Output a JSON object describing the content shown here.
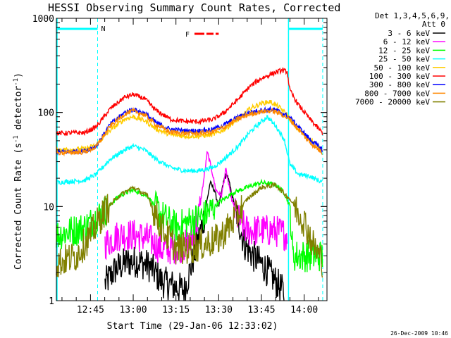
{
  "chart_data": {
    "type": "line",
    "title": "HESSI Observing Summary Count Rates, Corrected",
    "xlabel": "Start Time (29-Jan-06 12:33:02)",
    "ylabel_parts": [
      "Corrected Count Rate (s",
      "-1",
      " detector",
      "-1",
      ")"
    ],
    "x_ticks": [
      "12:45",
      "13:00",
      "13:15",
      "13:30",
      "13:45",
      "14:00"
    ],
    "y_ticks": [
      "1",
      "10",
      "100",
      "1000"
    ],
    "y_scale": "log",
    "ylim": [
      1,
      1000
    ],
    "xlim": [
      "12:33:02",
      "14:08"
    ],
    "grid": false,
    "legend_header": [
      "Det 1,3,4,5,6,9,",
      "Att 0"
    ],
    "legend_position": "right",
    "annotations": {
      "night_marker": "N",
      "flare_marker": "F"
    },
    "night_intervals": [
      [
        "12:33:02",
        "12:47:30"
      ],
      [
        "13:54:30",
        "14:06:30"
      ]
    ],
    "flare_interval": [
      "13:21:30",
      "13:30:00"
    ],
    "timestamp": "26-Dec-2009 10:46",
    "series": [
      {
        "name": "3 - 6 keV",
        "color": "#000000",
        "points": [
          [
            "12:33",
            0
          ],
          [
            "12:47",
            0
          ],
          [
            "12:50",
            1.5
          ],
          [
            "12:54",
            2.2
          ],
          [
            "12:58",
            2.6
          ],
          [
            "13:02",
            2.6
          ],
          [
            "13:06",
            2.3
          ],
          [
            "13:10",
            1.6
          ],
          [
            "13:18",
            1.3
          ],
          [
            "13:22",
            3.5
          ],
          [
            "13:25",
            8
          ],
          [
            "13:27",
            18
          ],
          [
            "13:28.5",
            15
          ],
          [
            "13:30",
            10
          ],
          [
            "13:32",
            20
          ],
          [
            "13:33",
            22
          ],
          [
            "13:35",
            12
          ],
          [
            "13:37",
            7
          ],
          [
            "13:39",
            4
          ],
          [
            "13:42",
            3
          ],
          [
            "13:46",
            2.3
          ],
          [
            "13:50",
            1.6
          ],
          [
            "13:53",
            1.2
          ],
          [
            "13:54.5",
            0
          ]
        ]
      },
      {
        "name": "6 - 12 keV",
        "color": "#ff00ff",
        "points": [
          [
            "12:33",
            0
          ],
          [
            "12:47",
            0
          ],
          [
            "12:50",
            4
          ],
          [
            "12:55",
            5
          ],
          [
            "13:00",
            5
          ],
          [
            "13:05",
            4.6
          ],
          [
            "13:10",
            3.5
          ],
          [
            "13:15",
            3.6
          ],
          [
            "13:20",
            4
          ],
          [
            "13:23",
            8
          ],
          [
            "13:25",
            22
          ],
          [
            "13:26",
            38
          ],
          [
            "13:27.5",
            25
          ],
          [
            "13:29",
            15
          ],
          [
            "13:31",
            13
          ],
          [
            "13:32.5",
            25
          ],
          [
            "13:34",
            14
          ],
          [
            "13:36",
            8
          ],
          [
            "13:40",
            5.5
          ],
          [
            "13:45",
            5.6
          ],
          [
            "13:50",
            5.5
          ],
          [
            "13:54",
            5
          ],
          [
            "13:54.5",
            0
          ]
        ]
      },
      {
        "name": "12 - 25 keV",
        "color": "#00ff00",
        "points": [
          [
            "12:33",
            5
          ],
          [
            "12:43",
            6
          ],
          [
            "12:50",
            9
          ],
          [
            "12:55",
            13
          ],
          [
            "13:00",
            15
          ],
          [
            "13:05",
            13
          ],
          [
            "13:10",
            8
          ],
          [
            "13:15",
            6
          ],
          [
            "13:20",
            7
          ],
          [
            "13:25",
            8
          ],
          [
            "13:30",
            11
          ],
          [
            "13:35",
            14
          ],
          [
            "13:40",
            16
          ],
          [
            "13:45",
            18
          ],
          [
            "13:50",
            17
          ],
          [
            "13:53",
            14
          ],
          [
            "13:55",
            10
          ],
          [
            "13:56",
            3
          ],
          [
            "14:05",
            3
          ],
          [
            "14:06.5",
            3
          ]
        ]
      },
      {
        "name": "25 - 50 keV",
        "color": "#00ffff",
        "points": [
          [
            "12:33",
            18
          ],
          [
            "12:43",
            19
          ],
          [
            "12:47",
            22
          ],
          [
            "12:52",
            32
          ],
          [
            "12:57",
            40
          ],
          [
            "13:00",
            44
          ],
          [
            "13:04",
            40
          ],
          [
            "13:08",
            32
          ],
          [
            "13:13",
            26
          ],
          [
            "13:18",
            24
          ],
          [
            "13:23",
            24
          ],
          [
            "13:28",
            26
          ],
          [
            "13:32",
            32
          ],
          [
            "13:37",
            44
          ],
          [
            "13:41",
            62
          ],
          [
            "13:45",
            80
          ],
          [
            "13:47",
            90
          ],
          [
            "13:50",
            72
          ],
          [
            "13:53",
            52
          ],
          [
            "13:55",
            28
          ],
          [
            "13:58",
            22
          ],
          [
            "14:02",
            21
          ],
          [
            "14:06.5",
            18
          ]
        ]
      },
      {
        "name": "50 - 100 keV",
        "color": "#ffcc00",
        "points": [
          [
            "12:33",
            40
          ],
          [
            "12:43",
            41
          ],
          [
            "12:47",
            45
          ],
          [
            "12:52",
            65
          ],
          [
            "12:57",
            85
          ],
          [
            "13:00",
            90
          ],
          [
            "13:04",
            82
          ],
          [
            "13:08",
            67
          ],
          [
            "13:13",
            58
          ],
          [
            "13:18",
            56
          ],
          [
            "13:23",
            56
          ],
          [
            "13:28",
            58
          ],
          [
            "13:32",
            66
          ],
          [
            "13:37",
            85
          ],
          [
            "13:41",
            110
          ],
          [
            "13:45",
            125
          ],
          [
            "13:48",
            130
          ],
          [
            "13:51",
            115
          ],
          [
            "13:54",
            95
          ],
          [
            "13:57",
            70
          ],
          [
            "14:02",
            52
          ],
          [
            "14:06.5",
            40
          ]
        ]
      },
      {
        "name": "100 - 300 keV",
        "color": "#ff0000",
        "points": [
          [
            "12:33",
            60
          ],
          [
            "12:43",
            61
          ],
          [
            "12:47",
            70
          ],
          [
            "12:52",
            110
          ],
          [
            "12:57",
            145
          ],
          [
            "13:00",
            155
          ],
          [
            "13:04",
            140
          ],
          [
            "13:08",
            105
          ],
          [
            "13:13",
            85
          ],
          [
            "13:18",
            80
          ],
          [
            "13:23",
            80
          ],
          [
            "13:28",
            84
          ],
          [
            "13:32",
            100
          ],
          [
            "13:37",
            140
          ],
          [
            "13:41",
            190
          ],
          [
            "13:45",
            230
          ],
          [
            "13:49",
            260
          ],
          [
            "13:52",
            280
          ],
          [
            "13:54",
            272
          ],
          [
            "13:55",
            170
          ],
          [
            "13:58",
            120
          ],
          [
            "14:02",
            85
          ],
          [
            "14:06.5",
            60
          ]
        ]
      },
      {
        "name": "300 - 800 keV",
        "color": "#0000ff",
        "points": [
          [
            "12:33",
            38
          ],
          [
            "12:43",
            39
          ],
          [
            "12:47",
            44
          ],
          [
            "12:52",
            75
          ],
          [
            "12:57",
            100
          ],
          [
            "13:00",
            108
          ],
          [
            "13:04",
            98
          ],
          [
            "13:08",
            78
          ],
          [
            "13:13",
            66
          ],
          [
            "13:18",
            64
          ],
          [
            "13:23",
            64
          ],
          [
            "13:28",
            66
          ],
          [
            "13:32",
            74
          ],
          [
            "13:37",
            90
          ],
          [
            "13:41",
            100
          ],
          [
            "13:45",
            106
          ],
          [
            "13:49",
            108
          ],
          [
            "13:52",
            100
          ],
          [
            "13:55",
            88
          ],
          [
            "13:58",
            70
          ],
          [
            "14:02",
            52
          ],
          [
            "14:06.5",
            40
          ]
        ]
      },
      {
        "name": "800 - 7000 keV",
        "color": "#ff8800",
        "points": [
          [
            "12:33",
            37
          ],
          [
            "12:43",
            38
          ],
          [
            "12:47",
            43
          ],
          [
            "12:52",
            72
          ],
          [
            "12:57",
            96
          ],
          [
            "13:00",
            104
          ],
          [
            "13:04",
            94
          ],
          [
            "13:08",
            74
          ],
          [
            "13:13",
            62
          ],
          [
            "13:18",
            60
          ],
          [
            "13:23",
            60
          ],
          [
            "13:28",
            62
          ],
          [
            "13:32",
            70
          ],
          [
            "13:37",
            86
          ],
          [
            "13:41",
            96
          ],
          [
            "13:45",
            102
          ],
          [
            "13:49",
            104
          ],
          [
            "13:52",
            96
          ],
          [
            "13:55",
            84
          ],
          [
            "13:58",
            66
          ],
          [
            "14:02",
            48
          ],
          [
            "14:06.5",
            37
          ]
        ]
      },
      {
        "name": "7000 - 20000 keV",
        "color": "#808000",
        "points": [
          [
            "12:33",
            2.5
          ],
          [
            "12:40",
            3
          ],
          [
            "12:45",
            5
          ],
          [
            "12:50",
            9
          ],
          [
            "12:55",
            13
          ],
          [
            "13:00",
            16
          ],
          [
            "13:05",
            13
          ],
          [
            "13:10",
            6
          ],
          [
            "13:15",
            3.6
          ],
          [
            "13:20",
            3.6
          ],
          [
            "13:25",
            4
          ],
          [
            "13:30",
            4.5
          ],
          [
            "13:35",
            7
          ],
          [
            "13:40",
            12
          ],
          [
            "13:45",
            16
          ],
          [
            "13:50",
            17
          ],
          [
            "13:55",
            12
          ],
          [
            "14:00",
            7
          ],
          [
            "14:03",
            4
          ],
          [
            "14:06.5",
            2.6
          ]
        ]
      }
    ]
  }
}
